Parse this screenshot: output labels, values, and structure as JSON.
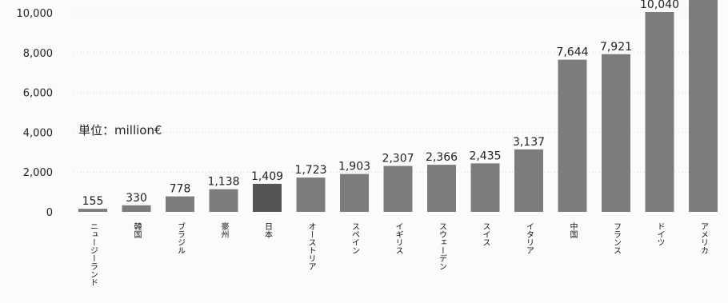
{
  "chart_data": {
    "type": "bar",
    "unit_label": "単位：million€",
    "categories": [
      "ニュージーランド",
      "韓国",
      "ブラジル",
      "豪州",
      "日本",
      "オーストリア",
      "スペイン",
      "イギリス",
      "スウェーデン",
      "スイス",
      "イタリア",
      "中国",
      "フランス",
      "ドイツ",
      "アメリカ"
    ],
    "values": [
      155,
      330,
      778,
      1138,
      1409,
      1723,
      1903,
      2307,
      2366,
      2435,
      3137,
      7644,
      7921,
      10040,
      11000
    ],
    "value_labels": [
      "155",
      "330",
      "778",
      "1,138",
      "1,409",
      "1,723",
      "1,903",
      "2,307",
      "2,366",
      "2,435",
      "3,137",
      "7,644",
      "7,921",
      "10,040",
      ""
    ],
    "y_ticks": [
      0,
      2000,
      4000,
      6000,
      8000,
      10000
    ],
    "y_tick_labels": [
      "0",
      "2,000",
      "4,000",
      "6,000",
      "8,000",
      "10,000"
    ],
    "ylim": [
      0,
      10000
    ],
    "grid": true,
    "colors": {
      "bar": "#7c7c7c",
      "highlight": "#555555"
    },
    "highlight_index": 4
  }
}
